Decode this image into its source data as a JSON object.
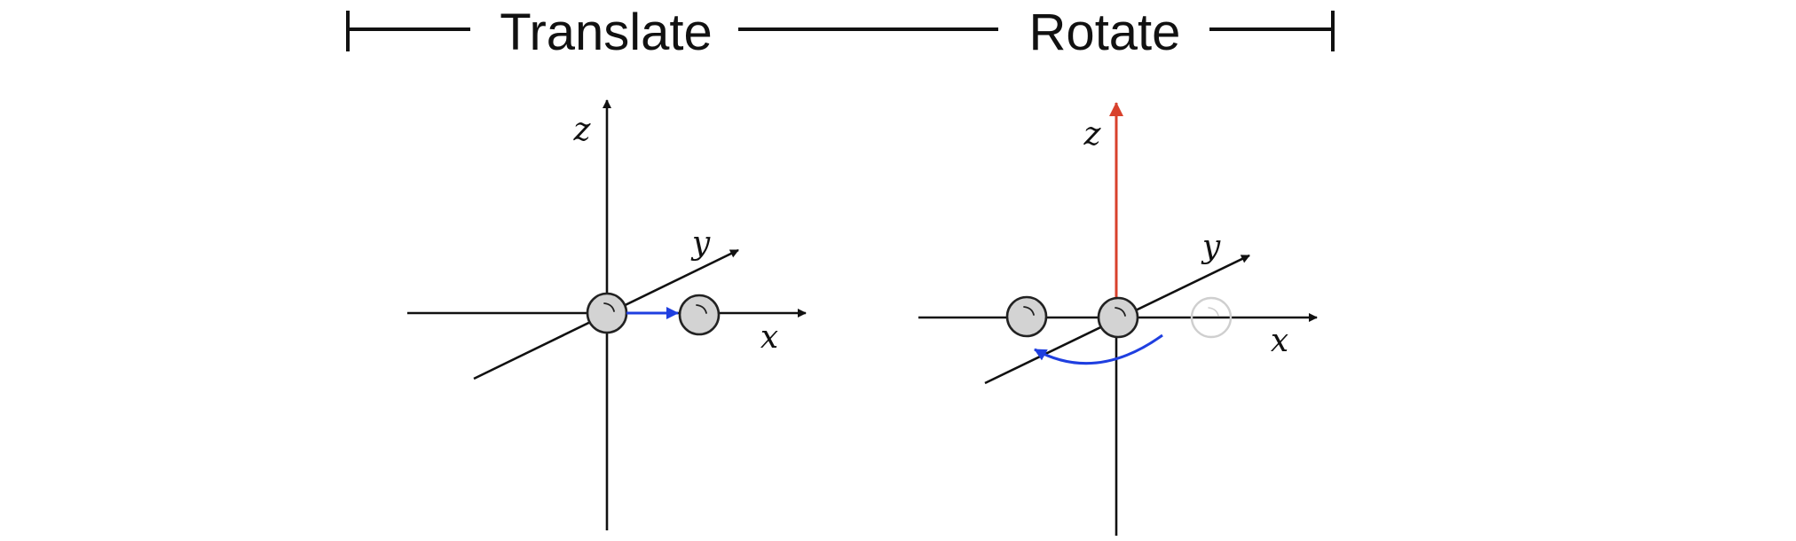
{
  "header": {
    "translate_label": "Translate",
    "rotate_label": "Rotate"
  },
  "translate_panel": {
    "axis_x": "x",
    "axis_y": "y",
    "axis_z": "z"
  },
  "rotate_panel": {
    "axis_x": "x",
    "axis_y": "y",
    "axis_z": "z"
  },
  "colors": {
    "ink": "#111111",
    "motion_arrow": "#1f3fe0",
    "rotation_axis": "#d8412c",
    "ball_fill": "#d3d3d3",
    "ghost_ball": "#cfcfcf"
  }
}
